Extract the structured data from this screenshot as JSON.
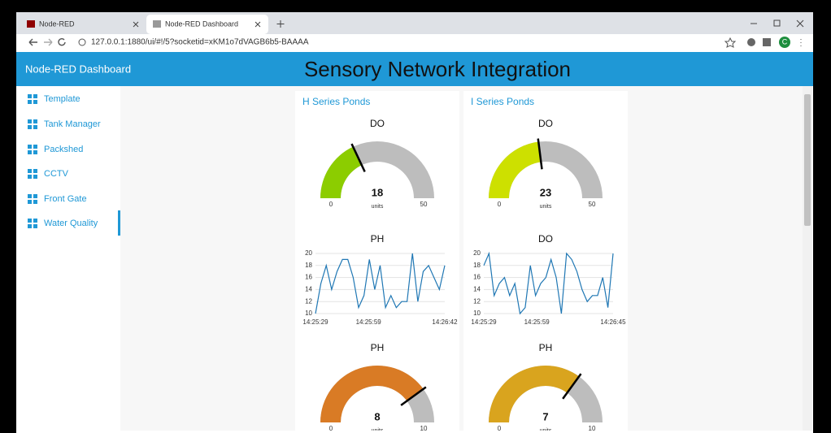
{
  "browser": {
    "tabs": [
      "Node-RED",
      "Node-RED Dashboard"
    ],
    "active_tab": 1,
    "url": "127.0.0.1:1880/ui/#!/5?socketid=xKM1o7dVAGB6b5-BAAAA",
    "profile": "C"
  },
  "header": {
    "app": "Node-RED Dashboard",
    "title": "Sensory Network Integration"
  },
  "menu": {
    "items": [
      "Template",
      "Tank Manager",
      "Packshed",
      "CCTV",
      "Front Gate",
      "Water Quality"
    ],
    "active": 5
  },
  "groups": [
    {
      "title": "H Series Ponds",
      "widgets": [
        {
          "type": "gauge",
          "label": "DO",
          "value": 18,
          "min": 0,
          "max": 50,
          "units": "units",
          "color": "#8ccd00"
        },
        {
          "type": "line",
          "label": "PH",
          "color": "#1f77b4",
          "ylim": [
            10,
            20
          ],
          "yticks": [
            10,
            12,
            14,
            16,
            18,
            20
          ],
          "xticks": [
            "14:25:29",
            "14:25:59",
            "14:26:42"
          ],
          "values": [
            10,
            15,
            18,
            14,
            17,
            19,
            19,
            16,
            11,
            13,
            19,
            14,
            18,
            11,
            13,
            11,
            12,
            12,
            20,
            12,
            17,
            18,
            16,
            14,
            18
          ]
        },
        {
          "type": "gauge",
          "label": "PH",
          "value": 8,
          "min": 0,
          "max": 10,
          "units": "units",
          "color": "#d97b25"
        }
      ]
    },
    {
      "title": "I Series Ponds",
      "widgets": [
        {
          "type": "gauge",
          "label": "DO",
          "value": 23,
          "min": 0,
          "max": 50,
          "units": "units",
          "color": "#cde000"
        },
        {
          "type": "line",
          "label": "DO",
          "color": "#1f77b4",
          "ylim": [
            10,
            20
          ],
          "yticks": [
            10,
            12,
            14,
            16,
            18,
            20
          ],
          "xticks": [
            "14:25:29",
            "14:25:59",
            "14:26:45"
          ],
          "values": [
            18,
            20,
            13,
            15,
            16,
            13,
            15,
            10,
            11,
            18,
            13,
            15,
            16,
            19,
            16,
            10,
            20,
            19,
            17,
            14,
            12,
            13,
            13,
            16,
            11,
            20
          ]
        },
        {
          "type": "gauge",
          "label": "PH",
          "value": 7,
          "min": 0,
          "max": 10,
          "units": "units",
          "color": "#d9a41e"
        }
      ]
    }
  ]
}
